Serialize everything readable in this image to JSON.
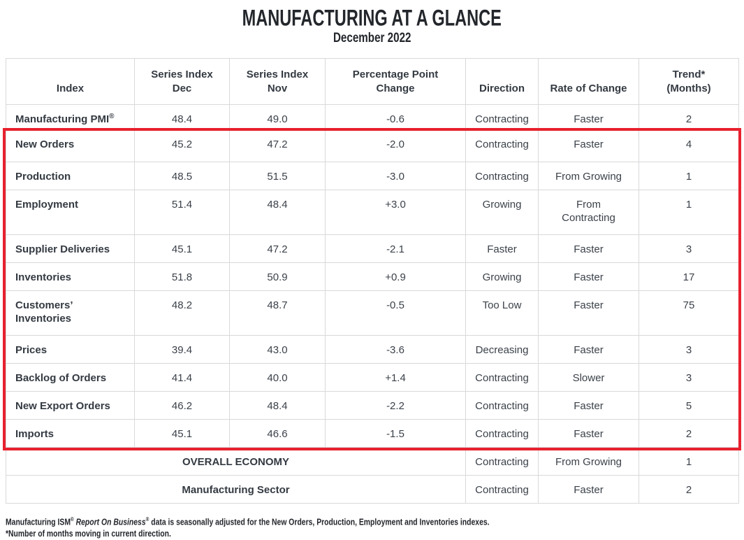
{
  "title": "MANUFACTURING AT A GLANCE",
  "subtitle": "December 2022",
  "highlight_box": {
    "color": "#e8212e",
    "from_row": "New Orders",
    "to_row": "Imports"
  },
  "table": {
    "headers": [
      "Index",
      "Series Index\nDec",
      "Series Index\nNov",
      "Percentage Point\nChange",
      "Direction",
      "Rate of Change",
      "Trend*\n(Months)"
    ],
    "rows": [
      {
        "label": "Manufacturing PMI",
        "sup": "®",
        "dec": "48.4",
        "nov": "49.0",
        "change": "-0.6",
        "direction": "Contracting",
        "rate": "Faster",
        "trend": "2"
      },
      {
        "label": "New Orders",
        "sup": "",
        "dec": "45.2",
        "nov": "47.2",
        "change": "-2.0",
        "direction": "Contracting",
        "rate": "Faster",
        "trend": "4"
      },
      {
        "label": "Production",
        "sup": "",
        "dec": "48.5",
        "nov": "51.5",
        "change": "-3.0",
        "direction": "Contracting",
        "rate": "From Growing",
        "trend": "1"
      },
      {
        "label": "Employment",
        "sup": "",
        "dec": "51.4",
        "nov": "48.4",
        "change": "+3.0",
        "direction": "Growing",
        "rate": "From\nContracting",
        "trend": "1"
      },
      {
        "label": "Supplier Deliveries",
        "sup": "",
        "dec": "45.1",
        "nov": "47.2",
        "change": "-2.1",
        "direction": "Faster",
        "rate": "Faster",
        "trend": "3"
      },
      {
        "label": "Inventories",
        "sup": "",
        "dec": "51.8",
        "nov": "50.9",
        "change": "+0.9",
        "direction": "Growing",
        "rate": "Faster",
        "trend": "17"
      },
      {
        "label": "Customers’\nInventories",
        "sup": "",
        "dec": "48.2",
        "nov": "48.7",
        "change": "-0.5",
        "direction": "Too Low",
        "rate": "Faster",
        "trend": "75"
      },
      {
        "label": "Prices",
        "sup": "",
        "dec": "39.4",
        "nov": "43.0",
        "change": "-3.6",
        "direction": "Decreasing",
        "rate": "Faster",
        "trend": "3"
      },
      {
        "label": "Backlog of Orders",
        "sup": "",
        "dec": "41.4",
        "nov": "40.0",
        "change": "+1.4",
        "direction": "Contracting",
        "rate": "Slower",
        "trend": "3"
      },
      {
        "label": "New Export Orders",
        "sup": "",
        "dec": "46.2",
        "nov": "48.4",
        "change": "-2.2",
        "direction": "Contracting",
        "rate": "Faster",
        "trend": "5"
      },
      {
        "label": "Imports",
        "sup": "",
        "dec": "45.1",
        "nov": "46.6",
        "change": "-1.5",
        "direction": "Contracting",
        "rate": "Faster",
        "trend": "2"
      }
    ],
    "summary_rows": [
      {
        "label": "OVERALL ECONOMY",
        "direction": "Contracting",
        "rate": "From Growing",
        "trend": "1"
      },
      {
        "label": "Manufacturing Sector",
        "direction": "Contracting",
        "rate": "Faster",
        "trend": "2"
      }
    ]
  },
  "chart_data": {
    "type": "table",
    "title": "MANUFACTURING AT A GLANCE",
    "subtitle": "December 2022",
    "columns": [
      "Index",
      "Series Index Dec",
      "Series Index Nov",
      "Percentage Point Change",
      "Direction",
      "Rate of Change",
      "Trend* (Months)"
    ],
    "rows": [
      [
        "Manufacturing PMI®",
        "48.4",
        "49.0",
        "-0.6",
        "Contracting",
        "Faster",
        "2"
      ],
      [
        "New Orders",
        "45.2",
        "47.2",
        "-2.0",
        "Contracting",
        "Faster",
        "4"
      ],
      [
        "Production",
        "48.5",
        "51.5",
        "-3.0",
        "Contracting",
        "From Growing",
        "1"
      ],
      [
        "Employment",
        "51.4",
        "48.4",
        "+3.0",
        "Growing",
        "From Contracting",
        "1"
      ],
      [
        "Supplier Deliveries",
        "45.1",
        "47.2",
        "-2.1",
        "Faster",
        "Faster",
        "3"
      ],
      [
        "Inventories",
        "51.8",
        "50.9",
        "+0.9",
        "Growing",
        "Faster",
        "17"
      ],
      [
        "Customers’ Inventories",
        "48.2",
        "48.7",
        "-0.5",
        "Too Low",
        "Faster",
        "75"
      ],
      [
        "Prices",
        "39.4",
        "43.0",
        "-3.6",
        "Decreasing",
        "Faster",
        "3"
      ],
      [
        "Backlog of Orders",
        "41.4",
        "40.0",
        "+1.4",
        "Contracting",
        "Slower",
        "3"
      ],
      [
        "New Export Orders",
        "46.2",
        "48.4",
        "-2.2",
        "Contracting",
        "Faster",
        "5"
      ],
      [
        "Imports",
        "45.1",
        "46.6",
        "-1.5",
        "Contracting",
        "Faster",
        "2"
      ],
      [
        "OVERALL ECONOMY",
        "",
        "",
        "",
        "Contracting",
        "From Growing",
        "1"
      ],
      [
        "Manufacturing Sector",
        "",
        "",
        "",
        "Contracting",
        "Faster",
        "2"
      ]
    ]
  },
  "footnote": {
    "line1_prefix": "Manufacturing ISM",
    "line1_sup1": "®",
    "line1_italic": " Report On Business",
    "line1_sup2": "®",
    "line1_suffix": " data is seasonally adjusted for the New Orders, Production, Employment and Inventories indexes.",
    "line2": "*Number of months moving in current direction."
  }
}
